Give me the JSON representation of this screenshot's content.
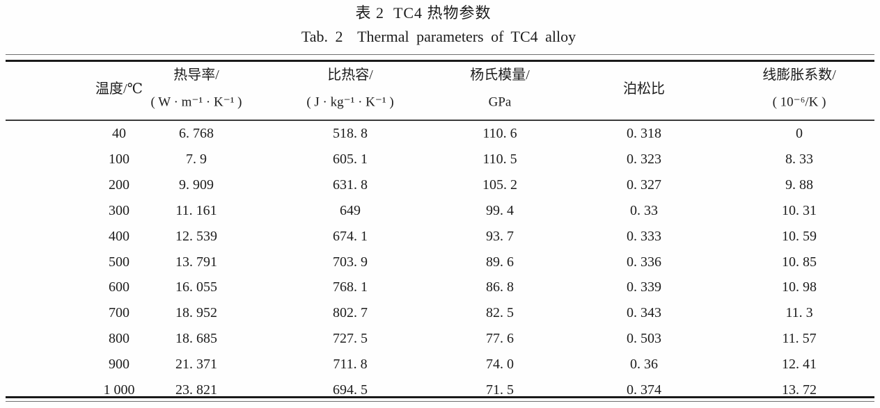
{
  "page": {
    "title_zh": "表 2  TC4 热物参数",
    "title_en": "Tab. 2  Thermal parameters of TC4 alloy"
  },
  "table": {
    "columns": [
      {
        "label": "温度/℃",
        "unit": ""
      },
      {
        "label": "热导率/",
        "unit": "( W · m⁻¹ · K⁻¹ )"
      },
      {
        "label": "比热容/",
        "unit": "( J · kg⁻¹ · K⁻¹ )"
      },
      {
        "label": "杨氏模量/",
        "unit": "GPa"
      },
      {
        "label": "泊松比",
        "unit": ""
      },
      {
        "label": "线膨胀系数/",
        "unit": "( 10⁻⁶/K )"
      }
    ],
    "rows": [
      [
        "40",
        "6. 768",
        "518. 8",
        "110. 6",
        "0. 318",
        "0"
      ],
      [
        "100",
        "7. 9",
        "605. 1",
        "110. 5",
        "0. 323",
        "8. 33"
      ],
      [
        "200",
        "9. 909",
        "631. 8",
        "105. 2",
        "0. 327",
        "9. 88"
      ],
      [
        "300",
        "11. 161",
        "649",
        "99. 4",
        "0. 33",
        "10. 31"
      ],
      [
        "400",
        "12. 539",
        "674. 1",
        "93. 7",
        "0. 333",
        "10. 59"
      ],
      [
        "500",
        "13. 791",
        "703. 9",
        "89. 6",
        "0. 336",
        "10. 85"
      ],
      [
        "600",
        "16. 055",
        "768. 1",
        "86. 8",
        "0. 339",
        "10. 98"
      ],
      [
        "700",
        "18. 952",
        "802. 7",
        "82. 5",
        "0. 343",
        "11. 3"
      ],
      [
        "800",
        "18. 685",
        "727. 5",
        "77. 6",
        "0. 503",
        "11. 57"
      ],
      [
        "900",
        "21. 371",
        "711. 8",
        "74. 0",
        "0. 36",
        "12. 41"
      ],
      [
        "1 000",
        "23. 821",
        "694. 5",
        "71. 5",
        "0. 374",
        "13. 72"
      ]
    ]
  }
}
